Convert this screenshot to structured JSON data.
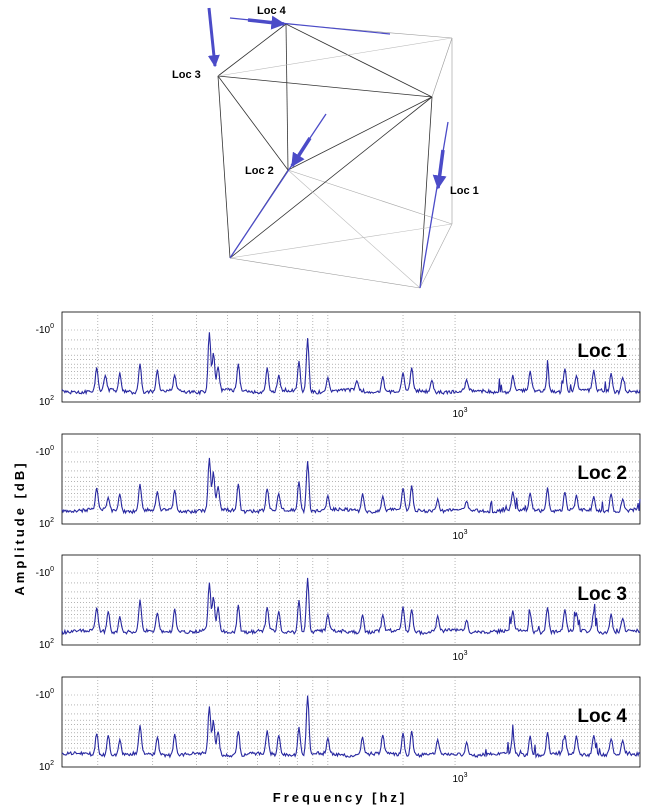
{
  "diagram": {
    "locations": [
      {
        "id": "loc4",
        "label": "Loc 4"
      },
      {
        "id": "loc3",
        "label": "Loc 3"
      },
      {
        "id": "loc2",
        "label": "Loc 2"
      },
      {
        "id": "loc1",
        "label": "Loc 1"
      }
    ],
    "line_color": "#333333",
    "arrow_color": "#4b4bc8"
  },
  "axes": {
    "ylabel": "Amplitude [dB]",
    "xlabel": "Frequency [hz]"
  },
  "chart_data": {
    "type": "line",
    "line_color": "#2828a0",
    "grid": true,
    "x_log_scale": true,
    "x_tick_label_base": "10",
    "x_tick_label_exp": "3",
    "y_tick_top_base": "-10",
    "y_tick_top_exp": "0",
    "y_tick_bottom_base": "10",
    "y_tick_bottom_exp": "2",
    "panels": [
      {
        "title": "Loc 1",
        "baseline": 0.88,
        "peaks": [
          {
            "x": 0.06,
            "y": 0.62
          },
          {
            "x": 0.075,
            "y": 0.7
          },
          {
            "x": 0.1,
            "y": 0.68
          },
          {
            "x": 0.135,
            "y": 0.58
          },
          {
            "x": 0.165,
            "y": 0.65
          },
          {
            "x": 0.195,
            "y": 0.7
          },
          {
            "x": 0.255,
            "y": 0.22
          },
          {
            "x": 0.262,
            "y": 0.45
          },
          {
            "x": 0.27,
            "y": 0.6
          },
          {
            "x": 0.305,
            "y": 0.58
          },
          {
            "x": 0.355,
            "y": 0.62
          },
          {
            "x": 0.375,
            "y": 0.7
          },
          {
            "x": 0.41,
            "y": 0.55
          },
          {
            "x": 0.425,
            "y": 0.3
          },
          {
            "x": 0.46,
            "y": 0.72
          },
          {
            "x": 0.51,
            "y": 0.76
          },
          {
            "x": 0.555,
            "y": 0.72
          },
          {
            "x": 0.59,
            "y": 0.68
          },
          {
            "x": 0.605,
            "y": 0.62
          },
          {
            "x": 0.64,
            "y": 0.75
          },
          {
            "x": 0.7,
            "y": 0.76
          },
          {
            "x": 0.78,
            "y": 0.7
          },
          {
            "x": 0.81,
            "y": 0.66
          },
          {
            "x": 0.84,
            "y": 0.68
          },
          {
            "x": 0.87,
            "y": 0.62
          },
          {
            "x": 0.89,
            "y": 0.7
          },
          {
            "x": 0.92,
            "y": 0.64
          },
          {
            "x": 0.95,
            "y": 0.68
          },
          {
            "x": 0.97,
            "y": 0.72
          }
        ]
      },
      {
        "title": "Loc 2",
        "baseline": 0.85,
        "peaks": [
          {
            "x": 0.06,
            "y": 0.6
          },
          {
            "x": 0.08,
            "y": 0.7
          },
          {
            "x": 0.1,
            "y": 0.66
          },
          {
            "x": 0.135,
            "y": 0.56
          },
          {
            "x": 0.165,
            "y": 0.64
          },
          {
            "x": 0.195,
            "y": 0.62
          },
          {
            "x": 0.255,
            "y": 0.26
          },
          {
            "x": 0.262,
            "y": 0.42
          },
          {
            "x": 0.27,
            "y": 0.58
          },
          {
            "x": 0.305,
            "y": 0.55
          },
          {
            "x": 0.355,
            "y": 0.6
          },
          {
            "x": 0.375,
            "y": 0.66
          },
          {
            "x": 0.41,
            "y": 0.52
          },
          {
            "x": 0.425,
            "y": 0.3
          },
          {
            "x": 0.46,
            "y": 0.68
          },
          {
            "x": 0.52,
            "y": 0.66
          },
          {
            "x": 0.555,
            "y": 0.7
          },
          {
            "x": 0.59,
            "y": 0.6
          },
          {
            "x": 0.605,
            "y": 0.58
          },
          {
            "x": 0.65,
            "y": 0.72
          },
          {
            "x": 0.7,
            "y": 0.74
          },
          {
            "x": 0.78,
            "y": 0.64
          },
          {
            "x": 0.81,
            "y": 0.66
          },
          {
            "x": 0.84,
            "y": 0.6
          },
          {
            "x": 0.87,
            "y": 0.64
          },
          {
            "x": 0.89,
            "y": 0.68
          },
          {
            "x": 0.92,
            "y": 0.7
          },
          {
            "x": 0.95,
            "y": 0.66
          },
          {
            "x": 0.97,
            "y": 0.72
          }
        ]
      },
      {
        "title": "Loc 3",
        "baseline": 0.85,
        "peaks": [
          {
            "x": 0.06,
            "y": 0.58
          },
          {
            "x": 0.08,
            "y": 0.62
          },
          {
            "x": 0.1,
            "y": 0.68
          },
          {
            "x": 0.135,
            "y": 0.5
          },
          {
            "x": 0.165,
            "y": 0.64
          },
          {
            "x": 0.195,
            "y": 0.6
          },
          {
            "x": 0.255,
            "y": 0.3
          },
          {
            "x": 0.262,
            "y": 0.46
          },
          {
            "x": 0.27,
            "y": 0.58
          },
          {
            "x": 0.305,
            "y": 0.56
          },
          {
            "x": 0.355,
            "y": 0.58
          },
          {
            "x": 0.375,
            "y": 0.62
          },
          {
            "x": 0.41,
            "y": 0.5
          },
          {
            "x": 0.425,
            "y": 0.26
          },
          {
            "x": 0.46,
            "y": 0.66
          },
          {
            "x": 0.52,
            "y": 0.66
          },
          {
            "x": 0.555,
            "y": 0.66
          },
          {
            "x": 0.59,
            "y": 0.58
          },
          {
            "x": 0.605,
            "y": 0.6
          },
          {
            "x": 0.65,
            "y": 0.68
          },
          {
            "x": 0.7,
            "y": 0.72
          },
          {
            "x": 0.78,
            "y": 0.62
          },
          {
            "x": 0.81,
            "y": 0.64
          },
          {
            "x": 0.84,
            "y": 0.58
          },
          {
            "x": 0.87,
            "y": 0.6
          },
          {
            "x": 0.89,
            "y": 0.64
          },
          {
            "x": 0.92,
            "y": 0.62
          },
          {
            "x": 0.95,
            "y": 0.66
          },
          {
            "x": 0.97,
            "y": 0.7
          }
        ]
      },
      {
        "title": "Loc 4",
        "baseline": 0.86,
        "peaks": [
          {
            "x": 0.06,
            "y": 0.62
          },
          {
            "x": 0.08,
            "y": 0.64
          },
          {
            "x": 0.1,
            "y": 0.7
          },
          {
            "x": 0.135,
            "y": 0.54
          },
          {
            "x": 0.165,
            "y": 0.66
          },
          {
            "x": 0.195,
            "y": 0.64
          },
          {
            "x": 0.255,
            "y": 0.32
          },
          {
            "x": 0.262,
            "y": 0.48
          },
          {
            "x": 0.27,
            "y": 0.6
          },
          {
            "x": 0.305,
            "y": 0.6
          },
          {
            "x": 0.355,
            "y": 0.6
          },
          {
            "x": 0.375,
            "y": 0.64
          },
          {
            "x": 0.41,
            "y": 0.56
          },
          {
            "x": 0.425,
            "y": 0.2
          },
          {
            "x": 0.46,
            "y": 0.68
          },
          {
            "x": 0.52,
            "y": 0.66
          },
          {
            "x": 0.555,
            "y": 0.64
          },
          {
            "x": 0.59,
            "y": 0.62
          },
          {
            "x": 0.605,
            "y": 0.6
          },
          {
            "x": 0.65,
            "y": 0.7
          },
          {
            "x": 0.7,
            "y": 0.72
          },
          {
            "x": 0.78,
            "y": 0.64
          },
          {
            "x": 0.81,
            "y": 0.66
          },
          {
            "x": 0.84,
            "y": 0.62
          },
          {
            "x": 0.87,
            "y": 0.64
          },
          {
            "x": 0.89,
            "y": 0.66
          },
          {
            "x": 0.92,
            "y": 0.64
          },
          {
            "x": 0.95,
            "y": 0.68
          },
          {
            "x": 0.97,
            "y": 0.7
          }
        ]
      }
    ]
  }
}
